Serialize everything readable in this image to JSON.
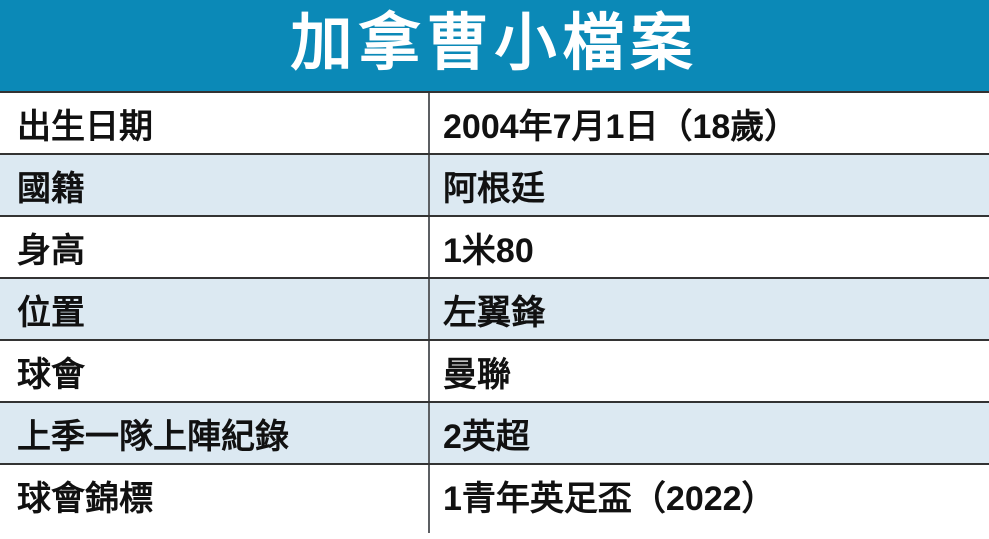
{
  "title": "加拿曹小檔案",
  "colors": {
    "header_bg": "#0b89b7",
    "row_alt_bg": "#dce9f2",
    "row_separator": "#333333",
    "column_divider": "#5c5f63",
    "text": "#111111",
    "title_text": "#ffffff"
  },
  "table": {
    "rows": [
      {
        "label": "出生日期",
        "value": "2004年7月1日（18歲）"
      },
      {
        "label": "國籍",
        "value": "阿根廷"
      },
      {
        "label": "身高",
        "value": "1米80"
      },
      {
        "label": "位置",
        "value": "左翼鋒"
      },
      {
        "label": "球會",
        "value": "曼聯"
      },
      {
        "label": "上季一隊上陣紀錄",
        "value": "2英超"
      },
      {
        "label": "球會錦標",
        "value": "1青年英足盃（2022）"
      }
    ]
  }
}
